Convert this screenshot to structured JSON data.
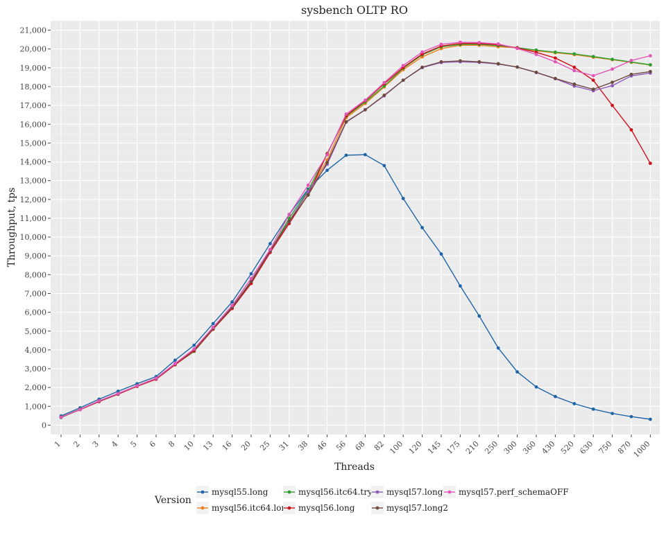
{
  "chart_data": {
    "type": "line",
    "title": "sysbench OLTP RO",
    "xlabel": "Threads",
    "ylabel": "Throughput, tps",
    "x_scale": "categorical",
    "categories": [
      "1",
      "2",
      "3",
      "4",
      "5",
      "6",
      "8",
      "10",
      "13",
      "16",
      "20",
      "25",
      "31",
      "38",
      "46",
      "56",
      "68",
      "82",
      "100",
      "120",
      "145",
      "175",
      "210",
      "250",
      "300",
      "360",
      "430",
      "520",
      "630",
      "750",
      "870",
      "1000"
    ],
    "ylim": [
      -500,
      21500
    ],
    "yticks": [
      0,
      1000,
      2000,
      3000,
      4000,
      5000,
      6000,
      7000,
      8000,
      9000,
      10000,
      11000,
      12000,
      13000,
      14000,
      15000,
      16000,
      17000,
      18000,
      19000,
      20000,
      21000
    ],
    "ytick_labels": [
      "0",
      "1,000",
      "2,000",
      "3,000",
      "4,000",
      "5,000",
      "6,000",
      "7,000",
      "8,000",
      "9,000",
      "10,000",
      "11,000",
      "12,000",
      "13,000",
      "14,000",
      "15,000",
      "16,000",
      "17,000",
      "18,000",
      "19,000",
      "20,000",
      "21,000"
    ],
    "grid": true,
    "legend_title": "Version",
    "legend_position": "bottom",
    "series": [
      {
        "name": "mysql55.long",
        "color": "#1f65a8",
        "values": [
          490,
          920,
          1380,
          1800,
          2200,
          2580,
          3450,
          4250,
          5400,
          6550,
          8050,
          9650,
          11200,
          12550,
          13550,
          14350,
          14380,
          13800,
          12050,
          10500,
          9100,
          7400,
          5800,
          4100,
          2830,
          2030,
          1520,
          1140,
          850,
          620,
          450,
          310
        ]
      },
      {
        "name": "mysql56.itc64.long",
        "color": "#f07f1e",
        "values": [
          410,
          840,
          1270,
          1660,
          2070,
          2460,
          3230,
          3960,
          5120,
          6210,
          7560,
          9230,
          10850,
          12390,
          14100,
          16350,
          17100,
          17980,
          18900,
          19580,
          20020,
          20200,
          20200,
          20120,
          20060,
          19900,
          19800,
          19700,
          19560,
          19430,
          19290,
          19150
        ]
      },
      {
        "name": "mysql56.itc64.try2",
        "color": "#2ca02c",
        "values": [
          400,
          830,
          1260,
          1650,
          2060,
          2450,
          3220,
          3920,
          5100,
          6220,
          7570,
          9230,
          11000,
          12480,
          14440,
          16420,
          17180,
          18030,
          18980,
          19690,
          20120,
          20240,
          20250,
          20180,
          20070,
          19940,
          19830,
          19740,
          19600,
          19450,
          19310,
          19160
        ]
      },
      {
        "name": "mysql56.long",
        "color": "#d0121c",
        "values": [
          420,
          820,
          1250,
          1640,
          2060,
          2440,
          3210,
          3950,
          5100,
          6200,
          7530,
          9180,
          10720,
          12260,
          14420,
          16450,
          17250,
          18150,
          19020,
          19730,
          20160,
          20300,
          20290,
          20230,
          20060,
          19820,
          19520,
          19030,
          18340,
          17000,
          15700,
          13920
        ]
      },
      {
        "name": "mysql57.long",
        "color": "#8e5bbf",
        "values": [
          420,
          830,
          1280,
          1670,
          2090,
          2480,
          3260,
          4020,
          5150,
          6270,
          7650,
          9270,
          10830,
          12420,
          13870,
          16110,
          16770,
          17510,
          18340,
          19010,
          19280,
          19320,
          19290,
          19200,
          19040,
          18750,
          18420,
          18030,
          17780,
          18050,
          18570,
          18720
        ]
      },
      {
        "name": "mysql57.long2",
        "color": "#6e4a3e",
        "values": [
          430,
          840,
          1280,
          1680,
          2090,
          2490,
          3270,
          4030,
          5140,
          6270,
          7650,
          9280,
          10840,
          12230,
          13960,
          16130,
          16770,
          17540,
          18340,
          19030,
          19320,
          19370,
          19320,
          19220,
          19040,
          18760,
          18430,
          18130,
          17860,
          18230,
          18650,
          18800
        ]
      },
      {
        "name": "mysql57.perf_schemaOFF",
        "color": "#e356b8",
        "values": [
          420,
          830,
          1290,
          1680,
          2090,
          2490,
          3270,
          4050,
          5200,
          6360,
          7800,
          9340,
          11200,
          12760,
          14380,
          16540,
          17280,
          18210,
          19120,
          19840,
          20250,
          20360,
          20340,
          20270,
          20030,
          19710,
          19320,
          18850,
          18580,
          18930,
          19390,
          19640
        ]
      }
    ]
  }
}
